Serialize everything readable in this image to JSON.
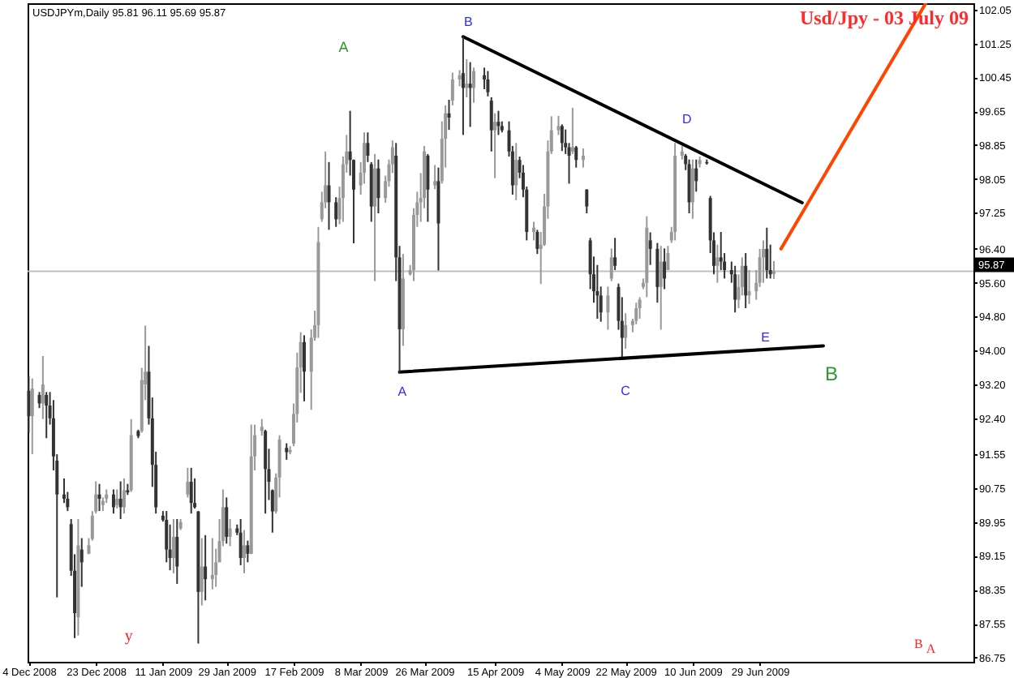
{
  "chart_data": {
    "type": "candlestick",
    "title": "Usd/Jpy - 03 July 09",
    "subtitle": "USDJPYm,Daily 95.81 96.11 95.69 95.87",
    "x": [
      "2008-12-04",
      "2008-12-05",
      "2008-12-07",
      "2008-12-08",
      "2008-12-09",
      "2008-12-10",
      "2008-12-11",
      "2008-12-12",
      "2008-12-14",
      "2008-12-15",
      "2008-12-16",
      "2008-12-17",
      "2008-12-18",
      "2008-12-19",
      "2008-12-21",
      "2008-12-22",
      "2008-12-23",
      "2008-12-24",
      "2008-12-25",
      "2008-12-26",
      "2008-12-28",
      "2008-12-29",
      "2008-12-30",
      "2008-12-31",
      "2009-01-01",
      "2009-01-02",
      "2009-01-04",
      "2009-01-05",
      "2009-01-06",
      "2009-01-07",
      "2009-01-08",
      "2009-01-09",
      "2009-01-11",
      "2009-01-12",
      "2009-01-13",
      "2009-01-14",
      "2009-01-15",
      "2009-01-16",
      "2009-01-18",
      "2009-01-19",
      "2009-01-20",
      "2009-01-21",
      "2009-01-22",
      "2009-01-23",
      "2009-01-25",
      "2009-01-26",
      "2009-01-27",
      "2009-01-28",
      "2009-01-29",
      "2009-01-30",
      "2009-02-01",
      "2009-02-02",
      "2009-02-03",
      "2009-02-04",
      "2009-02-05",
      "2009-02-06",
      "2009-02-08",
      "2009-02-09",
      "2009-02-10",
      "2009-02-11",
      "2009-02-12",
      "2009-02-13",
      "2009-02-15",
      "2009-02-16",
      "2009-02-17",
      "2009-02-18",
      "2009-02-19",
      "2009-02-20",
      "2009-02-22",
      "2009-02-23",
      "2009-02-24",
      "2009-02-25",
      "2009-02-26",
      "2009-02-27",
      "2009-03-01",
      "2009-03-02",
      "2009-03-03",
      "2009-03-04",
      "2009-03-05",
      "2009-03-06",
      "2009-03-08",
      "2009-03-09",
      "2009-03-10",
      "2009-03-11",
      "2009-03-12",
      "2009-03-13",
      "2009-03-15",
      "2009-03-16",
      "2009-03-17",
      "2009-03-18",
      "2009-03-19",
      "2009-03-20",
      "2009-03-22",
      "2009-03-23",
      "2009-03-24",
      "2009-03-25",
      "2009-03-26",
      "2009-03-27",
      "2009-03-29",
      "2009-03-30",
      "2009-03-31",
      "2009-04-01",
      "2009-04-02",
      "2009-04-03",
      "2009-04-05",
      "2009-04-06",
      "2009-04-07",
      "2009-04-08",
      "2009-04-09",
      "2009-04-12",
      "2009-04-13",
      "2009-04-14",
      "2009-04-15",
      "2009-04-16",
      "2009-04-17",
      "2009-04-19",
      "2009-04-20",
      "2009-04-21",
      "2009-04-22",
      "2009-04-23",
      "2009-04-24",
      "2009-04-26",
      "2009-04-27",
      "2009-04-28",
      "2009-04-29",
      "2009-04-30",
      "2009-05-01",
      "2009-05-03",
      "2009-05-04",
      "2009-05-05",
      "2009-05-06",
      "2009-05-07",
      "2009-05-08",
      "2009-05-10",
      "2009-05-11",
      "2009-05-12",
      "2009-05-13",
      "2009-05-14",
      "2009-05-15",
      "2009-05-17",
      "2009-05-18",
      "2009-05-19",
      "2009-05-20",
      "2009-05-21",
      "2009-05-22",
      "2009-05-24",
      "2009-05-25",
      "2009-05-26",
      "2009-05-27",
      "2009-05-28",
      "2009-05-29",
      "2009-05-31",
      "2009-06-01",
      "2009-06-02",
      "2009-06-03",
      "2009-06-04",
      "2009-06-05",
      "2009-06-07",
      "2009-06-08",
      "2009-06-09",
      "2009-06-10",
      "2009-06-11",
      "2009-06-12",
      "2009-06-14",
      "2009-06-15",
      "2009-06-16",
      "2009-06-17",
      "2009-06-18",
      "2009-06-19",
      "2009-06-21",
      "2009-06-22",
      "2009-06-23",
      "2009-06-24",
      "2009-06-25",
      "2009-06-26",
      "2009-06-28",
      "2009-06-29",
      "2009-06-30",
      "2009-07-01",
      "2009-07-02",
      "2009-07-03"
    ],
    "ohlc": [
      [
        93.05,
        93.4,
        92.06,
        92.45
      ],
      [
        92.45,
        93.34,
        91.55,
        93.1
      ],
      [
        92.95,
        93.02,
        92.64,
        92.75
      ],
      [
        92.75,
        93.87,
        92.38,
        93.2
      ],
      [
        92.95,
        93.02,
        91.93,
        92.7
      ],
      [
        92.7,
        93.02,
        92.25,
        92.4
      ],
      [
        92.4,
        92.83,
        91.17,
        91.5
      ],
      [
        91.4,
        91.55,
        88.17,
        90.6
      ],
      [
        90.6,
        90.98,
        90.4,
        90.5
      ],
      [
        90.5,
        90.66,
        90.21,
        90.3
      ],
      [
        89.9,
        90.02,
        88.68,
        88.8
      ],
      [
        88.8,
        89.19,
        87.21,
        87.8
      ],
      [
        87.7,
        90.02,
        87.27,
        89.4
      ],
      [
        89.3,
        89.57,
        88.42,
        89.0
      ],
      [
        89.2,
        89.57,
        89.19,
        89.4
      ],
      [
        89.55,
        90.21,
        89.51,
        90.1
      ],
      [
        90.2,
        90.91,
        90.15,
        90.6
      ],
      [
        90.6,
        90.85,
        90.21,
        90.5
      ],
      [
        90.35,
        90.53,
        90.21,
        90.45
      ],
      [
        90.5,
        90.72,
        90.4,
        90.6
      ],
      [
        90.6,
        90.72,
        90.15,
        90.3
      ],
      [
        90.35,
        90.72,
        90.27,
        90.5
      ],
      [
        90.5,
        90.91,
        90.02,
        90.3
      ],
      [
        90.3,
        90.98,
        90.15,
        90.7
      ],
      [
        90.7,
        90.85,
        90.59,
        90.65
      ],
      [
        90.7,
        92.38,
        90.66,
        92.0
      ],
      [
        92.1,
        92.13,
        91.93,
        91.98
      ],
      [
        92.1,
        93.59,
        92.06,
        93.3
      ],
      [
        93.2,
        94.59,
        92.83,
        93.5
      ],
      [
        93.5,
        94.11,
        92.25,
        92.4
      ],
      [
        92.4,
        92.89,
        90.78,
        91.3
      ],
      [
        91.3,
        91.61,
        90.15,
        90.3
      ],
      [
        90.1,
        90.21,
        89.96,
        90.0
      ],
      [
        90.0,
        90.21,
        89.0,
        89.3
      ],
      [
        89.3,
        89.89,
        88.81,
        89.1
      ],
      [
        89.1,
        90.02,
        88.74,
        89.6
      ],
      [
        89.6,
        90.02,
        88.49,
        88.9
      ],
      [
        89.8,
        90.02,
        89.76,
        89.95
      ],
      [
        90.6,
        91.23,
        90.53,
        90.9
      ],
      [
        90.9,
        91.23,
        90.15,
        90.4
      ],
      [
        90.4,
        90.98,
        90.27,
        90.3
      ],
      [
        90.2,
        90.21,
        87.08,
        88.3
      ],
      [
        88.3,
        89.57,
        87.98,
        88.9
      ],
      [
        88.9,
        89.64,
        88.1,
        88.6
      ],
      [
        88.6,
        89.57,
        88.36,
        88.7
      ],
      [
        88.7,
        89.32,
        88.42,
        89.0
      ],
      [
        89.0,
        90.02,
        89.0,
        89.5
      ],
      [
        89.5,
        90.72,
        89.38,
        90.3
      ],
      [
        90.3,
        90.53,
        89.44,
        89.6
      ],
      [
        89.6,
        90.02,
        89.38,
        89.8
      ],
      [
        89.8,
        89.89,
        89.64,
        89.7
      ],
      [
        89.7,
        90.02,
        88.93,
        89.1
      ],
      [
        89.1,
        89.76,
        88.74,
        89.4
      ],
      [
        89.4,
        89.51,
        89.0,
        89.2
      ],
      [
        89.2,
        92.25,
        89.19,
        91.5
      ],
      [
        91.5,
        92.25,
        91.17,
        92.0
      ],
      [
        92.1,
        92.38,
        91.99,
        92.2
      ],
      [
        92.1,
        92.13,
        90.15,
        91.2
      ],
      [
        91.2,
        91.68,
        90.47,
        90.9
      ],
      [
        90.7,
        90.72,
        89.7,
        90.2
      ],
      [
        90.2,
        91.1,
        90.15,
        91.0
      ],
      [
        91.0,
        92.0,
        90.53,
        91.9
      ],
      [
        91.7,
        91.81,
        91.42,
        91.6
      ],
      [
        91.6,
        91.74,
        91.55,
        91.65
      ],
      [
        91.8,
        92.75,
        91.74,
        92.5
      ],
      [
        92.5,
        93.95,
        92.3,
        93.6
      ],
      [
        93.6,
        94.43,
        93.0,
        94.2
      ],
      [
        94.2,
        94.36,
        92.8,
        93.5
      ],
      [
        93.5,
        94.5,
        92.6,
        94.3
      ],
      [
        94.3,
        94.94,
        94.23,
        94.6
      ],
      [
        94.6,
        96.92,
        94.3,
        96.56
      ],
      [
        97.1,
        97.75,
        97.04,
        97.5
      ],
      [
        97.5,
        98.7,
        97.36,
        97.9
      ],
      [
        97.9,
        98.45,
        96.85,
        97.5
      ],
      [
        97.5,
        97.62,
        96.92,
        97.1
      ],
      [
        97.1,
        97.87,
        96.98,
        97.6
      ],
      [
        97.6,
        98.58,
        97.04,
        98.4
      ],
      [
        98.4,
        99.09,
        98.2,
        98.7
      ],
      [
        98.7,
        99.66,
        98.13,
        98.5
      ],
      [
        98.5,
        98.51,
        96.53,
        97.8
      ],
      [
        97.9,
        98.45,
        97.68,
        98.2
      ],
      [
        98.2,
        99.15,
        97.94,
        98.9
      ],
      [
        98.9,
        99.15,
        98.45,
        98.6
      ],
      [
        98.4,
        98.45,
        97.04,
        97.4
      ],
      [
        97.4,
        98.64,
        95.64,
        98.3
      ],
      [
        98.3,
        98.51,
        97.24,
        97.6
      ],
      [
        97.6,
        98.13,
        97.49,
        98.0
      ],
      [
        98.0,
        98.51,
        97.87,
        98.4
      ],
      [
        98.4,
        98.96,
        98.19,
        98.8
      ],
      [
        98.6,
        98.9,
        95.64,
        96.2
      ],
      [
        96.2,
        96.47,
        93.47,
        94.5
      ],
      [
        94.5,
        96.28,
        94.11,
        95.7
      ],
      [
        95.8,
        96.02,
        95.77,
        95.9
      ],
      [
        95.9,
        97.36,
        95.64,
        97.2
      ],
      [
        97.2,
        97.75,
        96.92,
        97.5
      ],
      [
        97.5,
        98.19,
        97.04,
        97.6
      ],
      [
        97.6,
        98.83,
        97.36,
        98.7
      ],
      [
        98.6,
        98.64,
        97.04,
        97.8
      ],
      [
        97.9,
        98.38,
        97.81,
        98.0
      ],
      [
        98.0,
        98.32,
        95.89,
        97.0
      ],
      [
        98.0,
        99.41,
        97.94,
        99.0
      ],
      [
        99.0,
        99.79,
        98.32,
        99.6
      ],
      [
        99.6,
        99.92,
        99.21,
        99.5
      ],
      [
        99.9,
        100.56,
        99.79,
        100.4
      ],
      [
        100.4,
        100.62,
        100.24,
        100.5
      ],
      [
        100.55,
        101.41,
        99.09,
        100.2
      ],
      [
        100.2,
        100.88,
        99.98,
        100.3
      ],
      [
        100.3,
        100.81,
        99.28,
        100.2
      ],
      [
        100.2,
        100.68,
        99.85,
        100.6
      ],
      [
        100.5,
        100.68,
        100.17,
        100.4
      ],
      [
        100.4,
        100.6,
        100.0,
        100.1
      ],
      [
        99.9,
        99.98,
        98.7,
        99.2
      ],
      [
        99.2,
        99.6,
        98.07,
        99.4
      ],
      [
        99.4,
        99.66,
        99.09,
        99.3
      ],
      [
        99.3,
        99.41,
        99.15,
        99.2
      ],
      [
        99.2,
        99.41,
        98.58,
        98.7
      ],
      [
        98.7,
        98.83,
        97.68,
        97.9
      ],
      [
        97.9,
        98.9,
        97.55,
        98.5
      ],
      [
        98.5,
        98.58,
        98.07,
        98.2
      ],
      [
        98.2,
        98.38,
        97.62,
        97.8
      ],
      [
        97.8,
        97.87,
        96.6,
        96.8
      ],
      [
        96.8,
        97.04,
        96.6,
        96.9
      ],
      [
        96.8,
        96.85,
        96.28,
        96.4
      ],
      [
        96.4,
        96.8,
        95.57,
        96.5
      ],
      [
        96.5,
        97.7,
        96.47,
        97.4
      ],
      [
        97.4,
        98.96,
        97.11,
        98.7
      ],
      [
        98.7,
        99.53,
        98.64,
        99.2
      ],
      [
        99.2,
        99.54,
        99.09,
        99.3
      ],
      [
        99.3,
        99.34,
        98.71,
        98.9
      ],
      [
        98.9,
        99.22,
        98.64,
        98.8
      ],
      [
        98.8,
        98.9,
        97.94,
        98.6
      ],
      [
        98.7,
        99.73,
        98.64,
        98.8
      ],
      [
        98.8,
        98.83,
        98.32,
        98.5
      ],
      [
        98.5,
        98.77,
        98.32,
        98.6
      ],
      [
        97.8,
        97.81,
        97.24,
        97.4
      ],
      [
        96.6,
        96.66,
        95.45,
        95.8
      ],
      [
        95.8,
        96.22,
        95.13,
        95.4
      ],
      [
        95.4,
        96.02,
        94.75,
        95.3
      ],
      [
        95.3,
        95.51,
        94.68,
        94.9
      ],
      [
        94.9,
        95.51,
        94.49,
        95.3
      ],
      [
        95.7,
        96.41,
        95.64,
        96.2
      ],
      [
        96.2,
        96.66,
        95.9,
        96.0
      ],
      [
        95.5,
        95.58,
        94.49,
        94.7
      ],
      [
        94.7,
        95.26,
        93.85,
        94.3
      ],
      [
        94.3,
        94.88,
        94.04,
        94.6
      ],
      [
        94.6,
        94.75,
        94.43,
        94.7
      ],
      [
        94.7,
        95.13,
        94.62,
        95.0
      ],
      [
        95.0,
        95.26,
        94.75,
        95.2
      ],
      [
        95.5,
        95.7,
        95.45,
        95.6
      ],
      [
        95.6,
        97.17,
        95.26,
        96.9
      ],
      [
        96.6,
        96.79,
        96.02,
        96.4
      ],
      [
        96.4,
        96.54,
        95.13,
        95.5
      ],
      [
        95.5,
        96.47,
        94.49,
        96.1
      ],
      [
        96.1,
        96.41,
        95.45,
        95.7
      ],
      [
        95.9,
        96.47,
        95.9,
        96.3
      ],
      [
        96.6,
        96.92,
        96.54,
        96.8
      ],
      [
        96.8,
        98.9,
        96.6,
        98.6
      ],
      [
        98.6,
        98.83,
        98.51,
        98.7
      ],
      [
        98.6,
        98.64,
        98.26,
        98.4
      ],
      [
        98.4,
        98.51,
        97.24,
        97.5
      ],
      [
        97.5,
        98.51,
        97.11,
        98.3
      ],
      [
        98.3,
        98.51,
        97.75,
        98.0
      ],
      [
        98.4,
        98.58,
        98.32,
        98.5
      ],
      [
        98.45,
        98.51,
        98.39,
        98.42
      ],
      [
        97.6,
        97.65,
        96.3,
        96.6
      ],
      [
        96.6,
        96.79,
        95.8,
        96.0
      ],
      [
        96.0,
        96.5,
        95.6,
        96.2
      ],
      [
        96.2,
        96.8,
        95.9,
        96.1
      ],
      [
        96.1,
        96.3,
        95.7,
        95.9
      ],
      [
        95.9,
        96.1,
        95.6,
        95.8
      ],
      [
        95.8,
        96.0,
        94.9,
        95.2
      ],
      [
        95.2,
        95.8,
        95.0,
        95.5
      ],
      [
        95.5,
        96.2,
        95.3,
        96.0
      ],
      [
        96.0,
        96.3,
        95.0,
        95.3
      ],
      [
        95.3,
        95.9,
        95.1,
        95.4
      ],
      [
        95.4,
        95.9,
        95.2,
        95.6
      ],
      [
        95.6,
        96.4,
        95.5,
        96.2
      ],
      [
        96.2,
        96.6,
        95.6,
        96.4
      ],
      [
        96.4,
        96.9,
        95.7,
        95.9
      ],
      [
        95.9,
        96.5,
        95.7,
        95.8
      ],
      [
        95.81,
        96.11,
        95.69,
        95.87
      ]
    ],
    "colors": [
      "#333333",
      "#999999",
      "#333333",
      "#999999",
      "#333333",
      "#333333",
      "#333333",
      "#333333",
      "#333333",
      "#333333",
      "#333333",
      "#333333",
      "#999999",
      "#333333",
      "#999999",
      "#999999",
      "#999999",
      "#333333",
      "#999999",
      "#999999",
      "#333333",
      "#999999",
      "#333333",
      "#999999",
      "#333333",
      "#999999",
      "#333333",
      "#999999",
      "#999999",
      "#333333",
      "#333333",
      "#333333",
      "#333333",
      "#333333",
      "#333333",
      "#999999",
      "#333333",
      "#999999",
      "#999999",
      "#333333",
      "#333333",
      "#333333",
      "#999999",
      "#333333",
      "#999999",
      "#999999",
      "#999999",
      "#999999",
      "#333333",
      "#999999",
      "#333333",
      "#333333",
      "#999999",
      "#333333",
      "#999999",
      "#999999",
      "#999999",
      "#333333",
      "#333333",
      "#333333",
      "#999999",
      "#999999",
      "#333333",
      "#999999",
      "#999999",
      "#999999",
      "#999999",
      "#333333",
      "#999999",
      "#999999",
      "#999999",
      "#999999",
      "#999999",
      "#333333",
      "#333333",
      "#999999",
      "#999999",
      "#999999",
      "#333333",
      "#333333",
      "#999999",
      "#999999",
      "#333333",
      "#333333",
      "#999999",
      "#333333",
      "#999999",
      "#999999",
      "#999999",
      "#333333",
      "#333333",
      "#999999",
      "#999999",
      "#999999",
      "#999999",
      "#999999",
      "#999999",
      "#333333",
      "#999999",
      "#333333",
      "#999999",
      "#999999",
      "#333333",
      "#999999",
      "#999999",
      "#333333",
      "#999999",
      "#333333",
      "#999999",
      "#333333",
      "#333333",
      "#333333",
      "#999999",
      "#333333",
      "#333333",
      "#333333",
      "#333333",
      "#999999",
      "#333333",
      "#333333",
      "#333333",
      "#999999",
      "#333333",
      "#999999",
      "#999999",
      "#999999",
      "#999999",
      "#999999",
      "#333333",
      "#333333",
      "#333333",
      "#999999",
      "#333333",
      "#999999",
      "#333333",
      "#333333",
      "#333333",
      "#333333",
      "#333333",
      "#999999",
      "#999999",
      "#333333",
      "#333333",
      "#333333",
      "#999999",
      "#999999",
      "#999999",
      "#999999",
      "#999999",
      "#999999",
      "#333333",
      "#333333",
      "#999999",
      "#333333",
      "#999999",
      "#999999",
      "#999999",
      "#999999",
      "#333333",
      "#333333",
      "#999999",
      "#333333",
      "#999999",
      "#333333",
      "#333333",
      "#333333",
      "#999999",
      "#333333",
      "#333333",
      "#333333",
      "#333333",
      "#999999",
      "#999999",
      "#333333",
      "#999999",
      "#999999",
      "#999999",
      "#999999",
      "#333333",
      "#333333",
      "#999999"
    ],
    "series": [
      {
        "type": "line",
        "x": [
          "2009-04-06",
          "2009-07-11"
        ],
        "values": [
          101.41,
          97.49
        ],
        "color": "#000000"
      },
      {
        "type": "line",
        "x": [
          "2009-03-19",
          "2009-07-17"
        ],
        "values": [
          93.49,
          94.11
        ],
        "color": "#000000"
      },
      {
        "type": "line",
        "x": [
          "2009-07-05",
          "2009-08-15"
        ],
        "values": [
          96.4,
          102.2
        ],
        "color": "#ff4500"
      }
    ],
    "xlim": [
      "2008-12-03T16:00",
      "2009-08-28T12:00"
    ],
    "xticks": [
      {
        "value": "2008-12-04",
        "label": "4 Dec 2008"
      },
      {
        "value": "2008-12-23",
        "label": "23 Dec 2008"
      },
      {
        "value": "2009-01-11",
        "label": "11 Jan 2009"
      },
      {
        "value": "2009-01-29",
        "label": "29 Jan 2009"
      },
      {
        "value": "2009-02-17",
        "label": "17 Feb 2009"
      },
      {
        "value": "2009-03-08",
        "label": "8 Mar 2009"
      },
      {
        "value": "2009-03-26",
        "label": "26 Mar 2009"
      },
      {
        "value": "2009-04-15",
        "label": "15 Apr 2009"
      },
      {
        "value": "2009-05-04",
        "label": "4 May 2009"
      },
      {
        "value": "2009-05-22",
        "label": "22 May 2009"
      },
      {
        "value": "2009-06-10",
        "label": "10 Jun 2009"
      },
      {
        "value": "2009-06-29",
        "label": "29 Jun 2009"
      }
    ],
    "ylim": [
      86.65,
      102.2
    ],
    "yticks": [
      102.05,
      101.25,
      100.45,
      99.65,
      98.85,
      98.05,
      97.25,
      {
        "value": 96.4,
        "label": "96.40"
      },
      {
        "value": 95.6,
        "label": "95.60"
      },
      {
        "value": 94.8,
        "label": "94.80"
      },
      {
        "value": 94,
        "label": "94.00"
      },
      {
        "value": 93.2,
        "label": "93.20"
      },
      {
        "value": 92.4,
        "label": "92.40"
      },
      91.55,
      90.75,
      89.95,
      89.15,
      88.35,
      87.55,
      86.75
    ],
    "ref_lines": [
      {
        "axis": "y",
        "value": 95.87,
        "label": "95.87",
        "color": "#c0c0c0"
      }
    ],
    "annotations": [
      "A",
      "B",
      "D",
      "E",
      "B",
      "A",
      "C",
      "y",
      "B",
      "A"
    ]
  }
}
